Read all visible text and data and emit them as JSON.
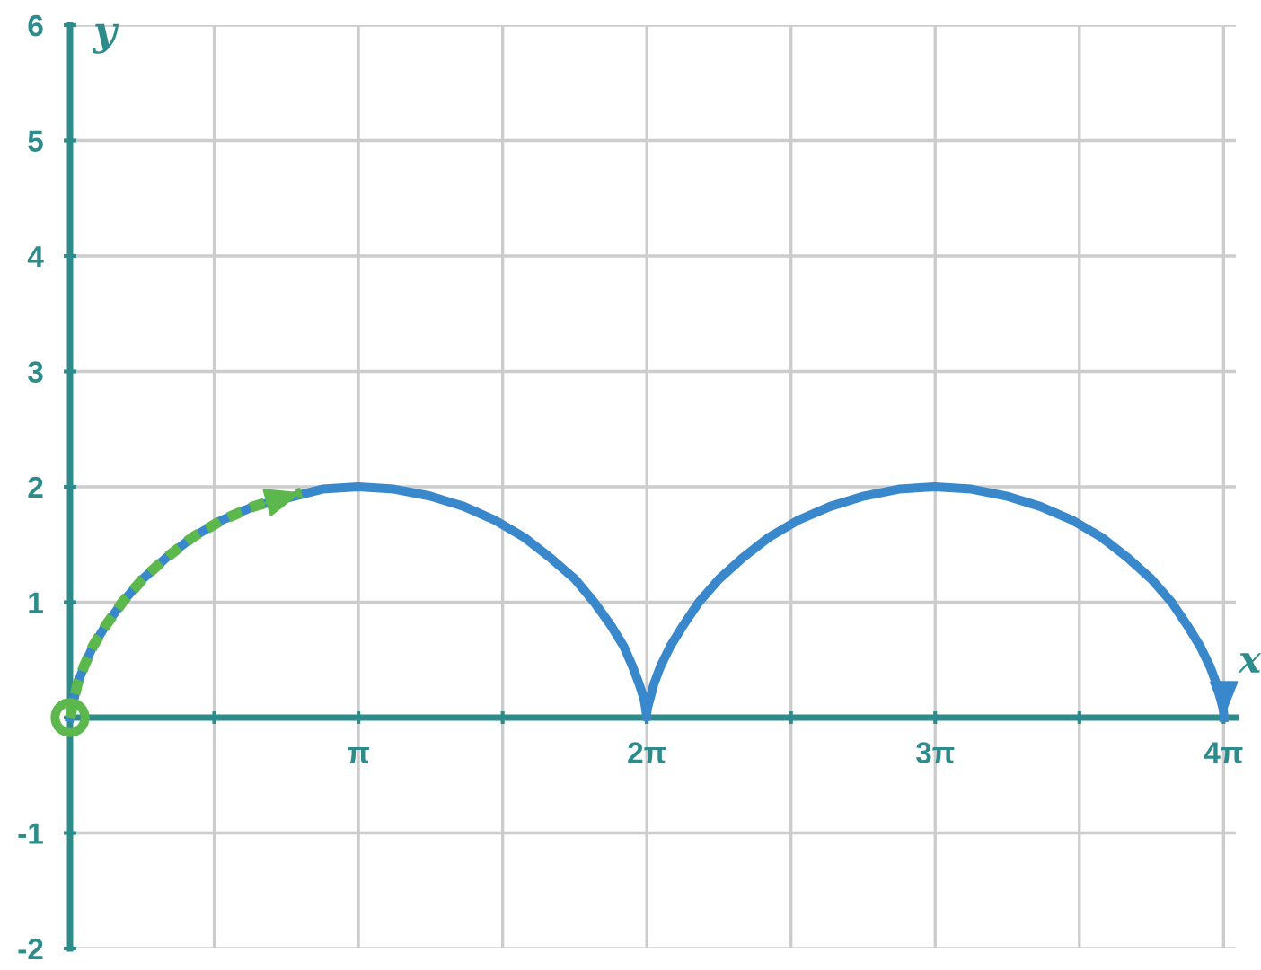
{
  "chart_data": {
    "type": "line",
    "xlabel": "x",
    "ylabel": "y",
    "xlim": [
      0,
      12.7
    ],
    "ylim": [
      -2,
      6
    ],
    "xticks": [
      {
        "value": 0,
        "label": null
      },
      {
        "value": 1.5708,
        "label": null
      },
      {
        "value": 3.1416,
        "label": "π"
      },
      {
        "value": 4.7124,
        "label": null
      },
      {
        "value": 6.2832,
        "label": "2π"
      },
      {
        "value": 7.854,
        "label": null
      },
      {
        "value": 9.4248,
        "label": "3π"
      },
      {
        "value": 10.9956,
        "label": null
      },
      {
        "value": 12.5664,
        "label": "4π"
      }
    ],
    "yticks": [
      -2,
      -1,
      {
        "value": 0,
        "label": null
      },
      1,
      2,
      3,
      4,
      5,
      6
    ],
    "grid": true,
    "line_style": "solid",
    "series": [
      {
        "color": "#3a88cc",
        "x": [
          0,
          0.08,
          0.15,
          0.25,
          0.39,
          0.57,
          0.79,
          1.04,
          1.33,
          1.65,
          2.0,
          2.75,
          3.14,
          3.53,
          3.92,
          4.29,
          4.63,
          4.95,
          5.24,
          5.5,
          5.71,
          5.89,
          6.03,
          6.13,
          6.2,
          6.25,
          6.27,
          6.28,
          6.28,
          6.28,
          6.29,
          6.32,
          6.36,
          6.43,
          6.54,
          6.68,
          6.85,
          7.07,
          7.32,
          7.61,
          7.93,
          8.28,
          8.65,
          9.03,
          9.42,
          9.82,
          10.2,
          10.57,
          10.92,
          11.24,
          11.53,
          11.78,
          12.0,
          12.17,
          12.31,
          12.42,
          12.49,
          12.53,
          12.56,
          12.57,
          12.57
        ],
        "values": [
          0,
          0.29,
          0.44,
          0.62,
          0.8,
          1,
          1.2,
          1.38,
          1.56,
          1.71,
          1.83,
          1.98,
          2,
          1.98,
          1.92,
          1.83,
          1.71,
          1.56,
          1.38,
          1.2,
          1,
          0.8,
          0.62,
          0.44,
          0.29,
          0.17,
          0.08,
          0.02,
          0,
          0.02,
          0.08,
          0.17,
          0.29,
          0.44,
          0.62,
          0.8,
          1,
          1.2,
          1.38,
          1.56,
          1.71,
          1.83,
          1.92,
          1.98,
          2,
          1.98,
          1.92,
          1.83,
          1.71,
          1.56,
          1.38,
          1.2,
          1,
          0.8,
          0.62,
          0.44,
          0.29,
          0.17,
          0.08,
          0.02,
          0
        ]
      },
      {
        "color": "#5cb84c",
        "line_style": "dashed",
        "x": [
          0,
          0.08,
          0.15,
          0.25,
          0.39,
          0.57,
          0.79,
          1.04,
          1.33,
          1.65,
          2.0,
          2.52
        ],
        "values": [
          0,
          0.29,
          0.44,
          0.62,
          0.8,
          1,
          1.2,
          1.38,
          1.56,
          1.71,
          1.83,
          1.95
        ]
      }
    ]
  }
}
